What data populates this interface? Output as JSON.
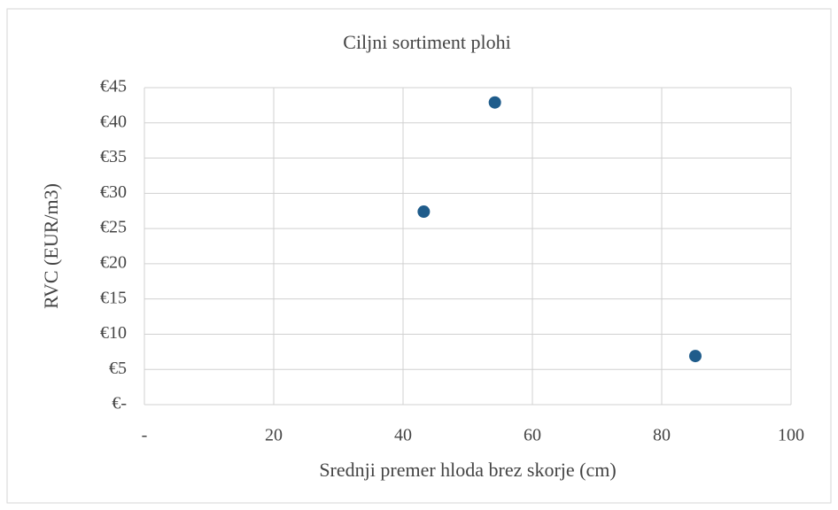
{
  "chart_data": {
    "type": "scatter",
    "title": "Ciljni sortiment plohi",
    "x_label": "Srednji premer hloda brez skorje (cm)",
    "y_label": "RVC (EUR/m3)",
    "series": [
      {
        "name": "Ciljni sortiment plohi",
        "color": "#1f5c8b",
        "x": [
          54.2,
          43.2,
          85.2
        ],
        "values": [
          42.9,
          27.4,
          6.9
        ]
      }
    ],
    "xlim": [
      0,
      100
    ],
    "xticks": [
      {
        "value": 0,
        "label": "-"
      },
      20,
      40,
      60,
      80,
      100
    ],
    "ylim": [
      0,
      45
    ],
    "yticks": [
      {
        "value": 0,
        "label": "€-"
      },
      {
        "value": 5,
        "label": "€5"
      },
      {
        "value": 10,
        "label": "€10"
      },
      {
        "value": 15,
        "label": "€15"
      },
      {
        "value": 20,
        "label": "€20"
      },
      {
        "value": 25,
        "label": "€25"
      },
      {
        "value": 30,
        "label": "€30"
      },
      {
        "value": 35,
        "label": "€35"
      },
      {
        "value": 40,
        "label": "€40"
      },
      {
        "value": 45,
        "label": "€45"
      }
    ],
    "grid": true
  }
}
